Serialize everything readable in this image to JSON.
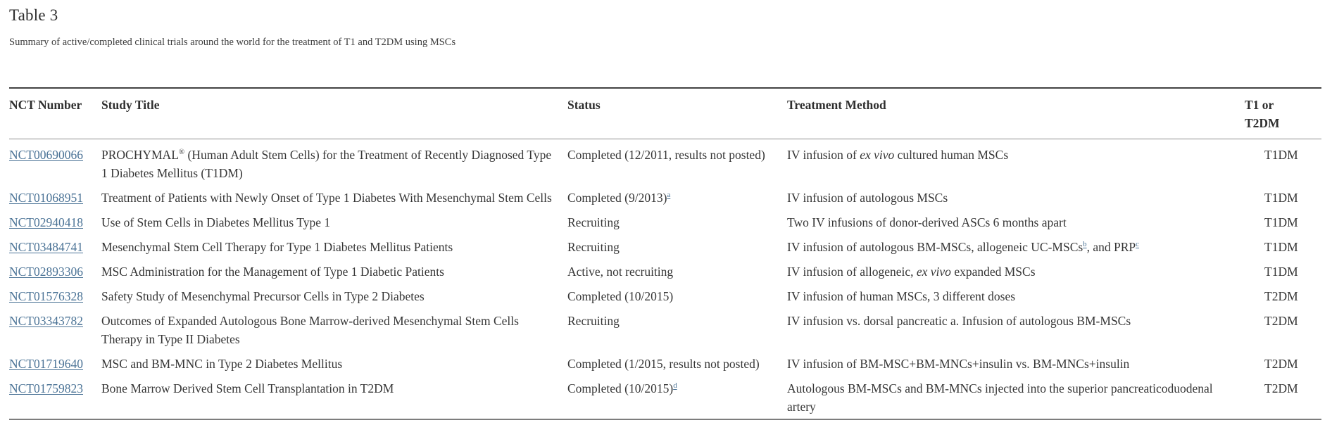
{
  "page": {
    "title": "Table 3",
    "caption": "Summary of active/completed clinical trials around the world for the treatment of T1 and T2DM using MSCs"
  },
  "colors": {
    "link": "#4b7396",
    "text": "#363636",
    "border_top": "#424242",
    "border_header": "#8c8c8c",
    "border_bottom": "#7d7d7d"
  },
  "table": {
    "headers": [
      "NCT Number",
      "Study Title",
      "Status",
      "Treatment Method",
      "T1 or T2DM"
    ],
    "rows": [
      {
        "nct": "NCT00690066",
        "title": [
          {
            "t": "text",
            "v": "PROCHYMAL"
          },
          {
            "t": "sup",
            "v": "®"
          },
          {
            "t": "text",
            "v": " (Human Adult Stem Cells) for the Treatment of Recently Diagnosed Type 1 Diabetes Mellitus (T1DM)"
          }
        ],
        "status": [
          {
            "t": "text",
            "v": "Completed (12/2011, results not posted)"
          }
        ],
        "treatment": [
          {
            "t": "text",
            "v": "IV infusion of "
          },
          {
            "t": "i",
            "v": "ex vivo"
          },
          {
            "t": "text",
            "v": " cultured human MSCs"
          }
        ],
        "type": "T1DM"
      },
      {
        "nct": "NCT01068951",
        "title": [
          {
            "t": "text",
            "v": "Treatment of Patients with Newly Onset of Type 1 Diabetes With Mesenchymal Stem Cells"
          }
        ],
        "status": [
          {
            "t": "text",
            "v": "Completed (9/2013)"
          },
          {
            "t": "suplink",
            "v": "a"
          }
        ],
        "treatment": [
          {
            "t": "text",
            "v": "IV infusion of autologous MSCs"
          }
        ],
        "type": "T1DM"
      },
      {
        "nct": "NCT02940418",
        "title": [
          {
            "t": "text",
            "v": "Use of Stem Cells in Diabetes Mellitus Type 1"
          }
        ],
        "status": [
          {
            "t": "text",
            "v": "Recruiting"
          }
        ],
        "treatment": [
          {
            "t": "text",
            "v": "Two IV infusions of donor-derived ASCs 6 months apart"
          }
        ],
        "type": "T1DM"
      },
      {
        "nct": "NCT03484741",
        "title": [
          {
            "t": "text",
            "v": "Mesenchymal Stem Cell Therapy for Type 1 Diabetes Mellitus Patients"
          }
        ],
        "status": [
          {
            "t": "text",
            "v": "Recruiting"
          }
        ],
        "treatment": [
          {
            "t": "text",
            "v": "IV infusion of autologous BM-MSCs, allogeneic UC-MSCs"
          },
          {
            "t": "suplink",
            "v": "b"
          },
          {
            "t": "text",
            "v": ", and PRP"
          },
          {
            "t": "suplink",
            "v": "c"
          }
        ],
        "type": "T1DM"
      },
      {
        "nct": "NCT02893306",
        "title": [
          {
            "t": "text",
            "v": "MSC Administration for the Management of Type 1 Diabetic Patients"
          }
        ],
        "status": [
          {
            "t": "text",
            "v": "Active, not recruiting"
          }
        ],
        "treatment": [
          {
            "t": "text",
            "v": "IV infusion of allogeneic, "
          },
          {
            "t": "i",
            "v": "ex vivo"
          },
          {
            "t": "text",
            "v": " expanded MSCs"
          }
        ],
        "type": "T1DM"
      },
      {
        "nct": "NCT01576328",
        "title": [
          {
            "t": "text",
            "v": "Safety Study of Mesenchymal Precursor Cells in Type 2 Diabetes"
          }
        ],
        "status": [
          {
            "t": "text",
            "v": "Completed (10/2015)"
          }
        ],
        "treatment": [
          {
            "t": "text",
            "v": "IV infusion of human MSCs, 3 different doses"
          }
        ],
        "type": "T2DM"
      },
      {
        "nct": "NCT03343782",
        "title": [
          {
            "t": "text",
            "v": "Outcomes of Expanded Autologous Bone Marrow-derived Mesenchymal Stem Cells Therapy in Type II Diabetes"
          }
        ],
        "status": [
          {
            "t": "text",
            "v": "Recruiting"
          }
        ],
        "treatment": [
          {
            "t": "text",
            "v": "IV infusion vs. dorsal pancreatic a. Infusion of autologous BM-MSCs"
          }
        ],
        "type": "T2DM"
      },
      {
        "nct": "NCT01719640",
        "title": [
          {
            "t": "text",
            "v": "MSC and BM-MNC in Type 2 Diabetes Mellitus"
          }
        ],
        "status": [
          {
            "t": "text",
            "v": "Completed (1/2015, results not posted)"
          }
        ],
        "treatment": [
          {
            "t": "text",
            "v": "IV infusion of BM-MSC+BM-MNCs+insulin vs. BM-MNCs+insulin"
          }
        ],
        "type": "T2DM"
      },
      {
        "nct": "NCT01759823",
        "title": [
          {
            "t": "text",
            "v": "Bone Marrow Derived Stem Cell Transplantation in T2DM"
          }
        ],
        "status": [
          {
            "t": "text",
            "v": "Completed (10/2015)"
          },
          {
            "t": "suplink",
            "v": "d"
          }
        ],
        "treatment": [
          {
            "t": "text",
            "v": "Autologous BM-MSCs and BM-MNCs injected into the superior pancreaticoduodenal artery"
          }
        ],
        "type": "T2DM"
      }
    ]
  }
}
